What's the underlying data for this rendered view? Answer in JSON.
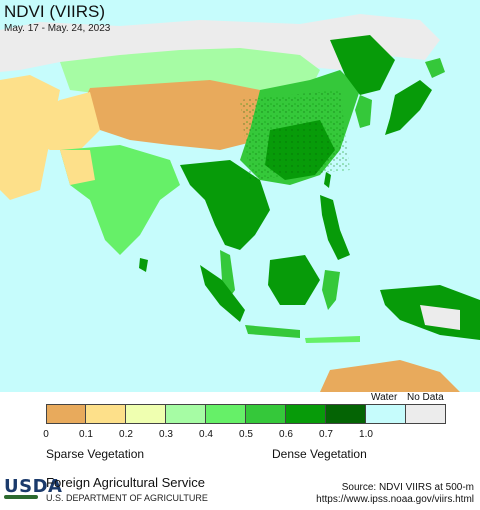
{
  "map": {
    "title": "NDVI (VIIRS)",
    "subtitle": "May. 17 - May. 24, 2023"
  },
  "legend": {
    "classes": [
      {
        "color": "#e8aa5c"
      },
      {
        "color": "#fde08a"
      },
      {
        "color": "#efffb0"
      },
      {
        "color": "#a6fca4"
      },
      {
        "color": "#66f068"
      },
      {
        "color": "#35c83a"
      },
      {
        "color": "#079b09"
      },
      {
        "color": "#046404"
      },
      {
        "color": "#c6fcfc"
      },
      {
        "color": "#ececec"
      }
    ],
    "ticks": [
      "0",
      "0.1",
      "0.2",
      "0.3",
      "0.4",
      "0.5",
      "0.6",
      "0.7",
      "1.0"
    ],
    "water_label": "Water",
    "nodata_label": "No Data",
    "sparse_label": "Sparse Vegetation",
    "dense_label": "Dense Vegetation"
  },
  "footer": {
    "logo_text": "USDA",
    "agency": "Foreign Agricultural Service",
    "department": "U.S. DEPARTMENT OF AGRICULTURE",
    "source": "Source: NDVI VIIRS at 500-m",
    "url": "https://www.ipss.noaa.gov/viirs.html"
  }
}
